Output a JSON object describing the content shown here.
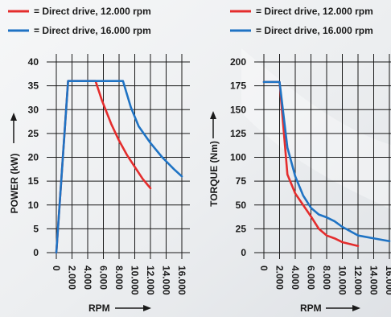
{
  "chart_data": [
    {
      "type": "line",
      "ylabel": "POWER (kW)",
      "xlabel": "RPM",
      "ylim": [
        0,
        40
      ],
      "xlim": [
        0,
        16000
      ],
      "yticks": [
        "0",
        "5",
        "10",
        "15",
        "20",
        "25",
        "30",
        "35",
        "40"
      ],
      "xticks": [
        "0",
        "2.000",
        "4.000",
        "6.000",
        "8.000",
        "10.000",
        "12.000",
        "14.000",
        "16.000"
      ],
      "grid": true,
      "legend": "top",
      "series": [
        {
          "name": "= Direct drive, 12.000 rpm",
          "color": "#e42d2d",
          "x": [
            0,
            1500,
            5000,
            5800,
            7000,
            8000,
            9000,
            10000,
            11000,
            12000
          ],
          "y": [
            0,
            36,
            36,
            32,
            27,
            23.5,
            20.5,
            18,
            15.5,
            13.5
          ]
        },
        {
          "name": "= Direct drive, 16.000 rpm",
          "color": "#1f73c4",
          "x": [
            0,
            1500,
            7000,
            8500,
            9500,
            10500,
            12000,
            13500,
            15000,
            16000
          ],
          "y": [
            0,
            36,
            36,
            36,
            30.5,
            26.5,
            23,
            20,
            17.5,
            16
          ]
        }
      ]
    },
    {
      "type": "line",
      "ylabel": "TORQUE (Nm)",
      "xlabel": "RPM",
      "ylim": [
        0,
        200
      ],
      "xlim": [
        0,
        16000
      ],
      "yticks": [
        "0",
        "25",
        "50",
        "75",
        "100",
        "125",
        "150",
        "175",
        "200"
      ],
      "xticks": [
        "0",
        "2.000",
        "4.000",
        "6.000",
        "8.000",
        "10.000",
        "12.000",
        "14.000",
        "16.000"
      ],
      "grid": true,
      "legend": "top",
      "series": [
        {
          "name": "= Direct drive, 12.000 rpm",
          "color": "#e42d2d",
          "x": [
            0,
            2000,
            3000,
            4000,
            5000,
            6000,
            7000,
            8000,
            9000,
            10000,
            11000,
            12000
          ],
          "y": [
            179,
            179,
            82,
            62,
            50,
            38,
            25,
            18,
            15,
            11,
            9,
            7
          ]
        },
        {
          "name": "= Direct drive, 16.000 rpm",
          "color": "#1f73c4",
          "x": [
            0,
            2000,
            3000,
            4000,
            5000,
            6000,
            7000,
            8000,
            9000,
            10000,
            12000,
            14000,
            16000
          ],
          "y": [
            179,
            179,
            110,
            80,
            60,
            47,
            40,
            37,
            33,
            27,
            18,
            15,
            12
          ]
        }
      ]
    }
  ]
}
